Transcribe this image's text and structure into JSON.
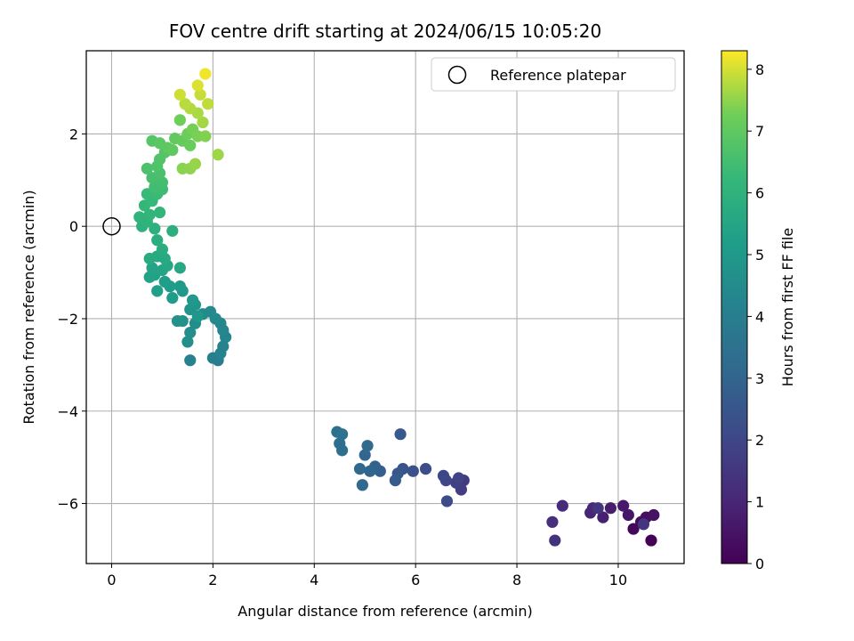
{
  "chart_data": {
    "type": "scatter",
    "title": "FOV centre drift starting at 2024/06/15 10:05:20",
    "xlabel": "Angular distance from reference (arcmin)",
    "ylabel": "Rotation from reference (arcmin)",
    "xlim": [
      -0.5,
      11.3
    ],
    "ylim": [
      -7.3,
      3.8
    ],
    "x_ticks": [
      0,
      2,
      4,
      6,
      8,
      10
    ],
    "y_ticks": [
      -6,
      -4,
      -2,
      0,
      2
    ],
    "grid": true,
    "legend": {
      "position": "top-right",
      "entries": [
        {
          "label": "Reference platepar",
          "marker": "open-circle"
        }
      ]
    },
    "reference": {
      "x": 0,
      "y": 0
    },
    "colorbar": {
      "label": "Hours from first FF file",
      "min": 0,
      "max": 8.3,
      "ticks": [
        0,
        1,
        2,
        3,
        4,
        5,
        6,
        7,
        8
      ],
      "colormap": "viridis"
    },
    "series": [
      {
        "points": [
          [
            10.65,
            -6.8,
            0.05
          ],
          [
            10.3,
            -6.55,
            0.15
          ],
          [
            10.45,
            -6.4,
            0.25
          ],
          [
            10.55,
            -6.3,
            0.35
          ],
          [
            10.7,
            -6.25,
            0.45
          ],
          [
            10.2,
            -6.25,
            0.55
          ],
          [
            10.1,
            -6.05,
            0.65
          ],
          [
            9.85,
            -6.1,
            0.75
          ],
          [
            9.7,
            -6.3,
            0.85
          ],
          [
            9.45,
            -6.2,
            0.95
          ],
          [
            9.5,
            -6.1,
            1.05
          ],
          [
            8.9,
            -6.05,
            1.15
          ],
          [
            8.7,
            -6.4,
            1.25
          ],
          [
            8.75,
            -6.8,
            1.35
          ],
          [
            9.6,
            -6.1,
            1.4
          ],
          [
            10.5,
            -6.45,
            1.45
          ],
          [
            6.95,
            -5.5,
            1.6
          ],
          [
            6.9,
            -5.7,
            1.7
          ],
          [
            6.8,
            -5.55,
            1.8
          ],
          [
            6.85,
            -5.45,
            1.9
          ],
          [
            6.6,
            -5.5,
            2.0
          ],
          [
            6.55,
            -5.4,
            2.05
          ],
          [
            6.62,
            -5.95,
            2.15
          ],
          [
            6.2,
            -5.25,
            2.25
          ],
          [
            5.95,
            -5.3,
            2.35
          ],
          [
            5.75,
            -5.25,
            2.45
          ],
          [
            5.65,
            -5.35,
            2.55
          ],
          [
            5.7,
            -4.5,
            2.6
          ],
          [
            5.6,
            -5.5,
            2.7
          ],
          [
            5.3,
            -5.3,
            2.8
          ],
          [
            5.2,
            -5.2,
            2.9
          ],
          [
            5.1,
            -5.3,
            3.0
          ],
          [
            5.0,
            -4.95,
            3.05
          ],
          [
            4.9,
            -5.25,
            3.15
          ],
          [
            4.95,
            -5.6,
            3.2
          ],
          [
            5.05,
            -4.75,
            3.25
          ],
          [
            4.5,
            -4.7,
            3.35
          ],
          [
            4.55,
            -4.85,
            3.4
          ],
          [
            4.45,
            -4.45,
            3.45
          ],
          [
            4.55,
            -4.5,
            3.5
          ],
          [
            2.1,
            -2.9,
            4.0
          ],
          [
            2.0,
            -2.85,
            4.05
          ],
          [
            1.55,
            -2.9,
            4.1
          ],
          [
            2.15,
            -2.75,
            4.15
          ],
          [
            2.2,
            -2.6,
            4.2
          ],
          [
            2.25,
            -2.4,
            4.25
          ],
          [
            2.2,
            -2.25,
            4.3
          ],
          [
            2.15,
            -2.1,
            4.35
          ],
          [
            2.05,
            -2.0,
            4.4
          ],
          [
            1.95,
            -1.85,
            4.45
          ],
          [
            1.8,
            -1.9,
            4.5
          ],
          [
            1.65,
            -2.1,
            4.55
          ],
          [
            1.55,
            -2.3,
            4.6
          ],
          [
            1.5,
            -2.5,
            4.65
          ],
          [
            1.4,
            -2.05,
            4.7
          ],
          [
            1.3,
            -2.05,
            4.75
          ],
          [
            1.55,
            -1.8,
            4.8
          ],
          [
            1.65,
            -1.7,
            4.85
          ],
          [
            1.7,
            -1.95,
            4.9
          ],
          [
            1.6,
            -1.6,
            4.95
          ],
          [
            1.4,
            -1.4,
            5.0
          ],
          [
            1.35,
            -1.3,
            5.05
          ],
          [
            1.2,
            -1.55,
            5.1
          ],
          [
            1.15,
            -1.3,
            5.15
          ],
          [
            1.05,
            -1.2,
            5.2
          ],
          [
            0.9,
            -1.4,
            5.25
          ],
          [
            0.85,
            -1.05,
            5.3
          ],
          [
            0.75,
            -1.1,
            5.35
          ],
          [
            0.8,
            -0.9,
            5.4
          ],
          [
            1.0,
            -0.95,
            5.45
          ],
          [
            1.1,
            -0.85,
            5.5
          ],
          [
            1.35,
            -0.9,
            5.55
          ],
          [
            1.05,
            -0.7,
            5.6
          ],
          [
            0.9,
            -0.65,
            5.65
          ],
          [
            0.75,
            -0.7,
            5.7
          ],
          [
            1.0,
            -0.5,
            5.75
          ],
          [
            0.9,
            -0.3,
            5.8
          ],
          [
            1.2,
            -0.1,
            5.85
          ],
          [
            0.85,
            -0.05,
            5.9
          ],
          [
            0.6,
            0.0,
            5.95
          ],
          [
            0.7,
            0.1,
            6.0
          ],
          [
            0.55,
            0.2,
            6.05
          ],
          [
            0.75,
            0.25,
            6.1
          ],
          [
            0.95,
            0.3,
            6.15
          ],
          [
            0.65,
            0.45,
            6.2
          ],
          [
            0.8,
            0.55,
            6.25
          ],
          [
            0.7,
            0.7,
            6.3
          ],
          [
            0.9,
            0.7,
            6.35
          ],
          [
            1.0,
            0.8,
            6.4
          ],
          [
            0.85,
            0.85,
            6.45
          ],
          [
            1.0,
            0.95,
            6.5
          ],
          [
            0.8,
            1.05,
            6.55
          ],
          [
            0.95,
            1.15,
            6.6
          ],
          [
            0.7,
            1.25,
            6.65
          ],
          [
            0.9,
            1.3,
            6.7
          ],
          [
            0.95,
            1.45,
            6.75
          ],
          [
            1.05,
            1.6,
            6.8
          ],
          [
            0.8,
            1.85,
            6.85
          ],
          [
            0.95,
            1.8,
            6.9
          ],
          [
            1.1,
            1.7,
            6.95
          ],
          [
            1.2,
            1.65,
            7.0
          ],
          [
            1.25,
            1.9,
            7.05
          ],
          [
            1.4,
            1.85,
            7.1
          ],
          [
            1.55,
            1.75,
            7.15
          ],
          [
            1.5,
            2.0,
            7.2
          ],
          [
            1.35,
            2.3,
            7.25
          ],
          [
            1.6,
            2.1,
            7.3
          ],
          [
            1.7,
            1.95,
            7.35
          ],
          [
            1.85,
            1.95,
            7.4
          ],
          [
            1.4,
            1.25,
            7.45
          ],
          [
            1.55,
            1.25,
            7.5
          ],
          [
            1.65,
            1.35,
            7.55
          ],
          [
            2.1,
            1.55,
            7.6
          ],
          [
            1.8,
            2.25,
            7.65
          ],
          [
            1.7,
            2.45,
            7.7
          ],
          [
            1.55,
            2.55,
            7.75
          ],
          [
            1.45,
            2.65,
            7.8
          ],
          [
            1.9,
            2.65,
            7.85
          ],
          [
            1.75,
            2.85,
            7.9
          ],
          [
            1.35,
            2.85,
            7.95
          ],
          [
            1.7,
            3.05,
            8.05
          ],
          [
            1.85,
            3.3,
            8.2
          ]
        ]
      }
    ]
  }
}
